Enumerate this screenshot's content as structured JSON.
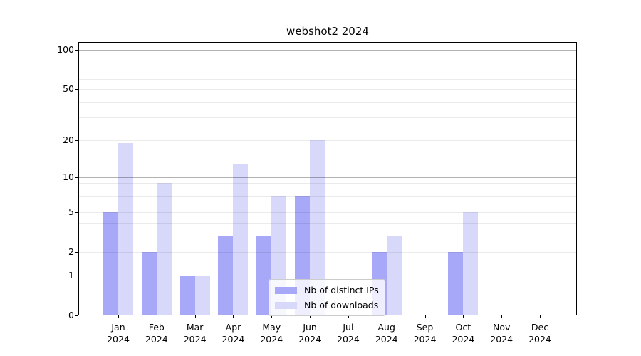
{
  "chart_data": {
    "type": "bar",
    "title": "webshot2 2024",
    "yscale": "log(1+x)",
    "ylim": [
      0,
      100
    ],
    "grid": true,
    "legend_position": "lower center",
    "x_labels": [
      [
        "Jan",
        "2024"
      ],
      [
        "Feb",
        "2024"
      ],
      [
        "Mar",
        "2024"
      ],
      [
        "Apr",
        "2024"
      ],
      [
        "May",
        "2024"
      ],
      [
        "Jun",
        "2024"
      ],
      [
        "Jul",
        "2024"
      ],
      [
        "Aug",
        "2024"
      ],
      [
        "Sep",
        "2024"
      ],
      [
        "Oct",
        "2024"
      ],
      [
        "Nov",
        "2024"
      ],
      [
        "Dec",
        "2024"
      ]
    ],
    "yticks": [
      {
        "value": 0,
        "label": "0"
      },
      {
        "value": 1,
        "label": "1"
      },
      {
        "value": 2,
        "label": "2"
      },
      {
        "value": 5,
        "label": "5"
      },
      {
        "value": 10,
        "label": "10"
      },
      {
        "value": 20,
        "label": "20"
      },
      {
        "value": 50,
        "label": "50"
      },
      {
        "value": 100,
        "label": "100"
      }
    ],
    "major_gridlines": [
      1,
      10,
      100
    ],
    "minor_gridlines": [
      2,
      3,
      4,
      5,
      6,
      7,
      8,
      9,
      20,
      30,
      40,
      50,
      60,
      70,
      80,
      90
    ],
    "series": [
      {
        "name": "Nb of distinct IPs",
        "color": "#a8a8f8",
        "values": [
          5,
          2,
          1,
          3,
          3,
          7,
          0,
          2,
          0,
          2,
          0,
          0
        ]
      },
      {
        "name": "Nb of downloads",
        "color": "#d8d8fa",
        "values": [
          19,
          9,
          1,
          13,
          7,
          20,
          0,
          3,
          0,
          5,
          0,
          0
        ]
      }
    ],
    "colors": {
      "major_grid": "#b0b0b0",
      "minor_grid": "#e8e8e8",
      "axis": "#000000",
      "legend_border": "#cccccc",
      "background": "#ffffff"
    }
  }
}
